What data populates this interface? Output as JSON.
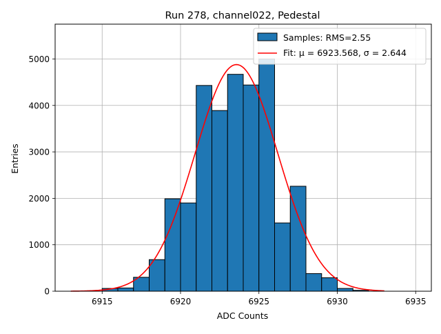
{
  "chart_data": {
    "type": "bar",
    "title": "Run 278, channel022, Pedestal",
    "xlabel": "ADC Counts",
    "ylabel": "Entries",
    "xlim": [
      6912,
      6936
    ],
    "ylim": [
      0,
      5750
    ],
    "xticks": [
      6915,
      6920,
      6925,
      6930,
      6935
    ],
    "yticks": [
      0,
      1000,
      2000,
      3000,
      4000,
      5000
    ],
    "grid": true,
    "legend_position": "top-right",
    "bar_color": "#1f77b4",
    "fit_color": "#ff0000",
    "series": [
      {
        "name": "Samples: RMS=2.55",
        "kind": "histogram",
        "bin_edges": [
          6915,
          6916,
          6917,
          6918,
          6919,
          6920,
          6921,
          6922,
          6923,
          6924,
          6925,
          6926,
          6927,
          6928,
          6929,
          6930,
          6931,
          6932
        ],
        "values": [
          60,
          70,
          300,
          680,
          1990,
          1900,
          4430,
          3890,
          4670,
          4440,
          5000,
          1470,
          2260,
          380,
          290,
          60,
          20
        ]
      },
      {
        "name": "Fit: μ = 6923.568, σ = 2.644",
        "kind": "gaussian",
        "mu": 6923.568,
        "sigma": 2.644,
        "amplitude": 4880,
        "x_range": [
          6913,
          6933
        ]
      }
    ]
  }
}
